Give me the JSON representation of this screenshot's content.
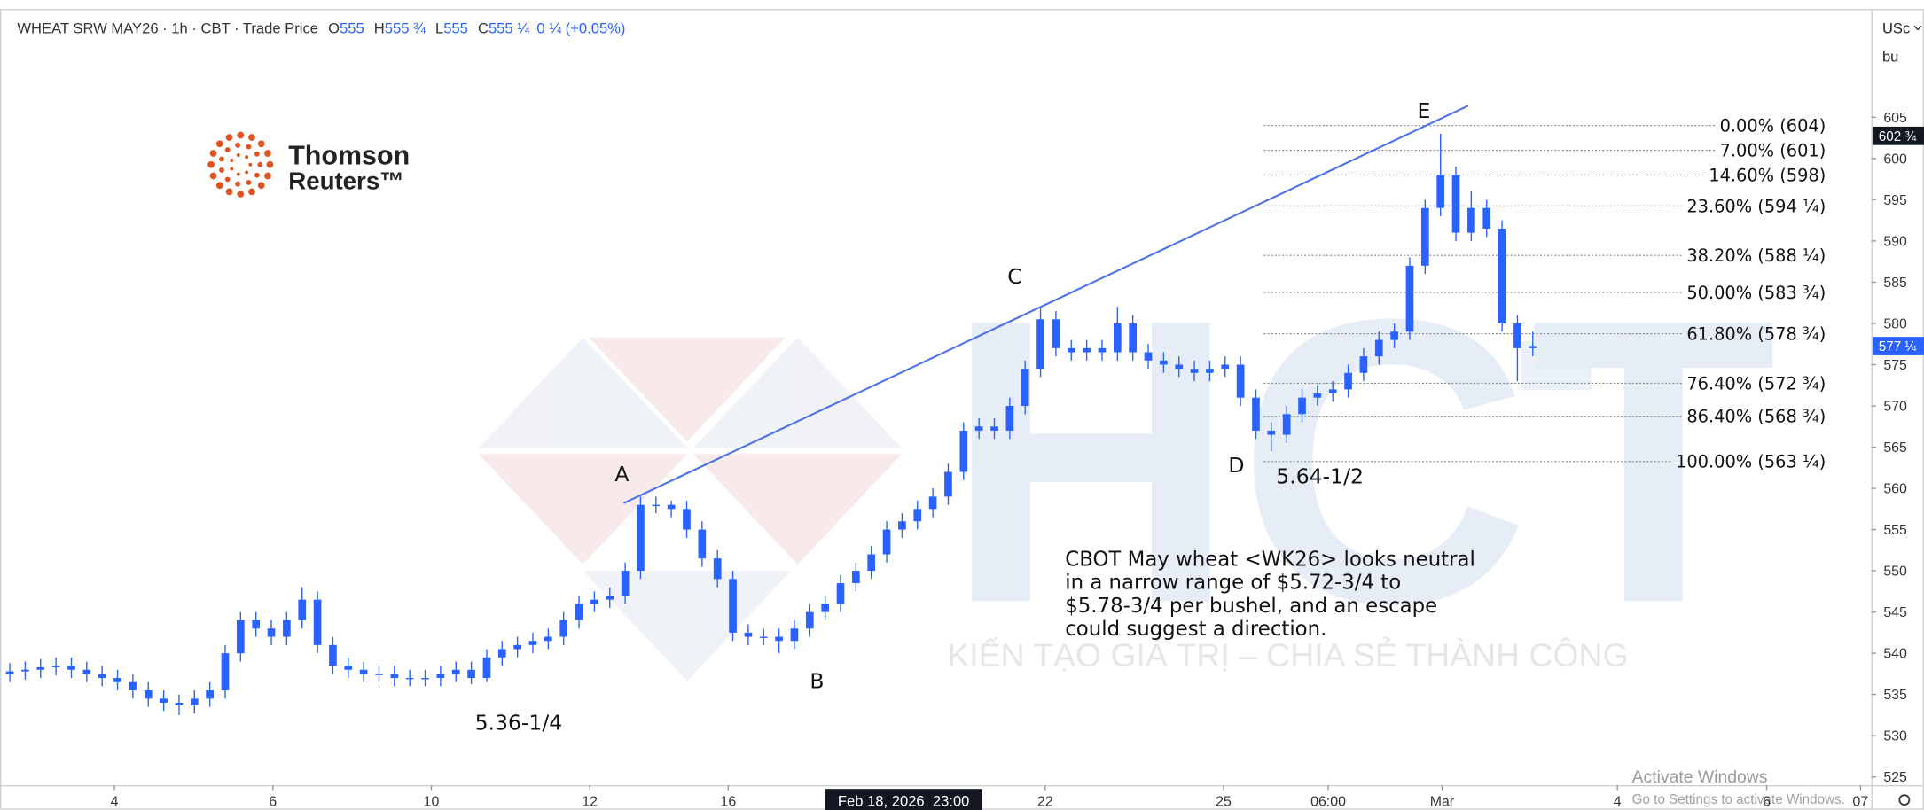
{
  "chart_data": {
    "type": "candlestick",
    "header": {
      "symbol": "WHEAT SRW MAY26 · 1h · CBT · Trade Price",
      "ohlc": [
        {
          "key": "O",
          "value": "555"
        },
        {
          "key": "H",
          "value": "555 ¾"
        },
        {
          "key": "L",
          "value": "555"
        },
        {
          "key": "C",
          "value": "555 ¼"
        }
      ],
      "change": "0 ¼ (+0.05%)"
    },
    "logo": [
      "Thomson",
      "Reuters™"
    ],
    "watermark": {
      "mark": "HCT",
      "tagline": "KIẾN TẠO GIÁ TRỊ – CHIA SẺ THÀNH CÔNG"
    },
    "currency": "USc",
    "unit": "bu",
    "color": "#2962ff",
    "grid": false,
    "xlim": [
      0,
      121
    ],
    "xticks": [
      {
        "value": 6.8,
        "label": "4"
      },
      {
        "value": 17.1,
        "label": "6"
      },
      {
        "value": 27.4,
        "label": "10"
      },
      {
        "value": 37.7,
        "label": "12"
      },
      {
        "value": 46.7,
        "label": "16"
      },
      {
        "value": 67.3,
        "label": "22"
      },
      {
        "value": 78.9,
        "label": "25"
      },
      {
        "value": 85.7,
        "label": "06:00"
      },
      {
        "value": 93.1,
        "label": "Mar"
      },
      {
        "value": 104.5,
        "label": "4"
      },
      {
        "value": 114.2,
        "label": "6"
      },
      {
        "value": 120.3,
        "label": "07"
      }
    ],
    "crosshair": {
      "value": 58.1,
      "label": "Feb 18, 2026  23:00"
    },
    "ylim": [
      524,
      618
    ],
    "yticks": [
      525,
      530,
      535,
      540,
      545,
      550,
      555,
      560,
      565,
      570,
      575,
      580,
      585,
      590,
      595,
      600,
      605
    ],
    "open": [
      537.5,
      537.8,
      538,
      538.3,
      538.5,
      538,
      537.5,
      537,
      536.5,
      535.5,
      534.5,
      534,
      533.7,
      534.5,
      535.5,
      540,
      544,
      543,
      542,
      544,
      546.5,
      541,
      538.5,
      538,
      537.5,
      537.5,
      537,
      537,
      537,
      537.5,
      538,
      537,
      539.5,
      540.5,
      541,
      541.5,
      542,
      544,
      546,
      546.5,
      547,
      550,
      558,
      558,
      557.5,
      555,
      551.5,
      549,
      542.5,
      542,
      542,
      541.5,
      543,
      545,
      546,
      548.5,
      550,
      552,
      555,
      556,
      557.5,
      559,
      562,
      567,
      567.5,
      567,
      570,
      574.5,
      580.5,
      577,
      576.5,
      577,
      576.5,
      580,
      576.5,
      575.5,
      575,
      574.5,
      574,
      574.5,
      575,
      571,
      567,
      566.5,
      569,
      571,
      571.5,
      572,
      574,
      576,
      578,
      579,
      587,
      594,
      598,
      591,
      594,
      591.5,
      580,
      577
    ],
    "high": [
      538.8,
      539,
      539.3,
      539.5,
      539.5,
      539,
      538.5,
      538,
      537.5,
      536.5,
      535.5,
      535,
      535.5,
      536.5,
      541,
      545,
      545,
      544,
      545,
      548,
      547.5,
      542,
      539.5,
      539,
      538.5,
      538.5,
      538,
      538,
      538.5,
      539,
      539,
      540.5,
      541.5,
      542,
      542.5,
      543,
      545,
      547,
      547.5,
      548,
      551,
      559,
      559,
      558.5,
      558.5,
      556,
      552.5,
      550,
      543.5,
      543,
      543,
      544,
      546,
      547,
      549.5,
      551,
      553,
      556,
      557,
      558.5,
      560,
      563,
      568,
      568.5,
      568.5,
      571,
      575.5,
      582,
      581.5,
      578,
      578,
      578,
      582,
      581,
      577.5,
      576.5,
      576,
      575.5,
      575.5,
      576,
      576,
      572,
      568,
      570,
      572,
      572.5,
      573,
      575,
      577,
      579,
      580,
      588,
      595,
      603,
      599,
      596,
      595,
      592.5,
      581,
      579
    ],
    "low": [
      536.5,
      536.8,
      537,
      537.3,
      537,
      536.5,
      536,
      535.5,
      534.5,
      533.5,
      533,
      532.5,
      532.7,
      533.5,
      534.5,
      539,
      542,
      541,
      541,
      543,
      540,
      537.5,
      537,
      536.5,
      536.5,
      536,
      536,
      536,
      536,
      536.5,
      536.25,
      536.5,
      538.5,
      539.5,
      540,
      540.5,
      541,
      543,
      545,
      545.5,
      546,
      549,
      557,
      556.5,
      554,
      550.5,
      548,
      541.5,
      541,
      541,
      540,
      540.5,
      542,
      544,
      545,
      547.5,
      549,
      551,
      554,
      555,
      556.5,
      558,
      561,
      566,
      566,
      566,
      569,
      573.5,
      576,
      575.5,
      575.5,
      575.5,
      575.5,
      575.5,
      574.5,
      574,
      573.5,
      573,
      573,
      573.5,
      570,
      566,
      564.5,
      565.5,
      568,
      570,
      570.5,
      571,
      573,
      575,
      577,
      578,
      586,
      593,
      590,
      590,
      590.5,
      579,
      573,
      576
    ],
    "close": [
      537.8,
      538,
      538.3,
      538.5,
      538,
      537.5,
      537,
      536.5,
      535.5,
      534.5,
      534,
      533.7,
      534.5,
      535.5,
      540,
      544,
      543,
      542,
      544,
      546.5,
      541,
      538.5,
      538,
      537.5,
      537.5,
      537,
      537,
      537,
      537.5,
      538,
      537,
      539.5,
      540.5,
      541,
      541.5,
      542,
      544,
      546,
      546.5,
      547,
      550,
      558,
      558,
      557.5,
      555,
      551.5,
      549,
      542.5,
      542,
      542,
      541.5,
      543,
      545,
      546,
      548.5,
      550,
      552,
      555,
      556,
      557.5,
      559,
      562,
      567,
      567.5,
      567,
      570,
      574.5,
      580.5,
      577,
      576.5,
      577,
      576.5,
      580,
      576.5,
      575.5,
      575,
      574.5,
      574,
      574.5,
      575,
      571,
      567,
      566.5,
      569,
      571,
      571.5,
      572,
      574,
      576,
      578,
      579,
      587,
      594,
      598,
      591,
      594,
      591.5,
      580,
      577,
      577.25
    ],
    "trendline": {
      "x": [
        39.9,
        94.8
      ],
      "y": [
        558.2,
        606.4
      ]
    },
    "fib_levels": [
      {
        "value": 604,
        "label": "0.00% (604)"
      },
      {
        "value": 601,
        "label": "7.00% (601)"
      },
      {
        "value": 598,
        "label": "14.60% (598)"
      },
      {
        "value": 594.25,
        "label": "23.60% (594 ¼)"
      },
      {
        "value": 588.25,
        "label": "38.20% (588 ¼)"
      },
      {
        "value": 583.75,
        "label": "50.00% (583 ¾)"
      },
      {
        "value": 578.75,
        "label": "61.80% (578 ¾)"
      },
      {
        "value": 572.75,
        "label": "76.40% (572 ¾)"
      },
      {
        "value": 568.75,
        "label": "86.40% (568 ¾)"
      },
      {
        "value": 563.25,
        "label": "100.00% (563 ¼)"
      }
    ],
    "last_price": {
      "value": 577.25,
      "label": "577 ¼"
    },
    "high_tag": {
      "value": 602.75,
      "label": "602 ¾"
    },
    "annotations": [
      "A",
      "B",
      "C",
      "D",
      "E",
      "5.36-1/4",
      "5.64-1/2"
    ],
    "commentary": [
      "CBOT May wheat <WK26> looks neutral",
      "in a narrow range of $5.72-3/4 to",
      "$5.78-3/4 per bushel, and an escape",
      "could suggest a direction."
    ],
    "os_notice": [
      "Activate Windows",
      "Go to Settings to activate Windows."
    ]
  }
}
